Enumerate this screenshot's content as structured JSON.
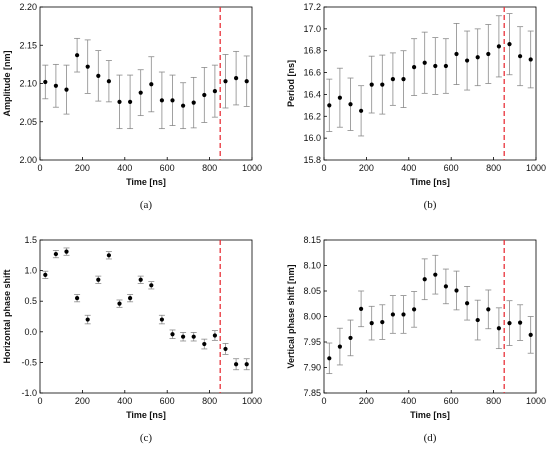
{
  "chart_data": [
    {
      "type": "scatter",
      "panel": "a",
      "caption": "(a)",
      "xlabel": "Time [ns]",
      "ylabel": "Amplitude [nm]",
      "xlim": [
        0,
        1000
      ],
      "ylim": [
        2.0,
        2.2
      ],
      "xticks": [
        "0",
        "200",
        "400",
        "600",
        "800",
        "1000"
      ],
      "yticks": [
        "2.00",
        "2.05",
        "2.10",
        "2.15",
        "2.20"
      ],
      "grid": false,
      "marker_line_x": 850,
      "series": [
        {
          "x": [
            25,
            75,
            125,
            175,
            225,
            275,
            325,
            375,
            425,
            475,
            525,
            575,
            625,
            675,
            725,
            775,
            825,
            875,
            925,
            975
          ],
          "y": [
            2.102,
            2.097,
            2.092,
            2.137,
            2.122,
            2.11,
            2.103,
            2.076,
            2.076,
            2.088,
            2.099,
            2.078,
            2.078,
            2.071,
            2.075,
            2.085,
            2.09,
            2.103,
            2.107,
            2.103
          ],
          "err": [
            0.022,
            0.028,
            0.032,
            0.022,
            0.035,
            0.033,
            0.027,
            0.035,
            0.035,
            0.03,
            0.036,
            0.037,
            0.033,
            0.03,
            0.033,
            0.036,
            0.034,
            0.035,
            0.035,
            0.033
          ]
        }
      ]
    },
    {
      "type": "scatter",
      "panel": "b",
      "caption": "(b)",
      "xlabel": "Time [ns]",
      "ylabel": "Period [ns]",
      "xlim": [
        0,
        1000
      ],
      "ylim": [
        15.8,
        17.2
      ],
      "xticks": [
        "0",
        "200",
        "400",
        "600",
        "800",
        "1000"
      ],
      "yticks": [
        "15.8",
        "16.0",
        "16.2",
        "16.4",
        "16.6",
        "16.8",
        "17.0",
        "17.2"
      ],
      "grid": false,
      "marker_line_x": 850,
      "series": [
        {
          "x": [
            25,
            75,
            125,
            175,
            225,
            275,
            325,
            375,
            425,
            475,
            525,
            575,
            625,
            675,
            725,
            775,
            825,
            875,
            925,
            975
          ],
          "y": [
            16.3,
            16.37,
            16.31,
            16.25,
            16.49,
            16.49,
            16.54,
            16.54,
            16.65,
            16.69,
            16.66,
            16.66,
            16.77,
            16.71,
            16.74,
            16.77,
            16.84,
            16.86,
            16.75,
            16.72
          ],
          "err": [
            0.24,
            0.27,
            0.24,
            0.23,
            0.26,
            0.27,
            0.24,
            0.26,
            0.26,
            0.28,
            0.26,
            0.25,
            0.28,
            0.27,
            0.26,
            0.27,
            0.28,
            0.28,
            0.27,
            0.26
          ]
        }
      ]
    },
    {
      "type": "scatter",
      "panel": "c",
      "caption": "(c)",
      "xlabel": "Time [ns]",
      "ylabel": "Horizontal phase shift",
      "xlim": [
        0,
        1000
      ],
      "ylim": [
        -1.0,
        1.5
      ],
      "xticks": [
        "0",
        "200",
        "400",
        "600",
        "800",
        "1000"
      ],
      "yticks": [
        "-1.0",
        "-0.5",
        "0.0",
        "0.5",
        "1.0",
        "1.5"
      ],
      "grid": false,
      "marker_line_x": 850,
      "series": [
        {
          "x": [
            25,
            75,
            125,
            175,
            225,
            275,
            325,
            375,
            425,
            475,
            525,
            575,
            625,
            675,
            725,
            775,
            825,
            875,
            925,
            975
          ],
          "y": [
            0.93,
            1.27,
            1.31,
            0.55,
            0.2,
            0.85,
            1.25,
            0.46,
            0.55,
            0.85,
            0.76,
            0.2,
            -0.04,
            -0.08,
            -0.08,
            -0.2,
            -0.06,
            -0.28,
            -0.53,
            -0.53
          ],
          "err": [
            0.06,
            0.06,
            0.06,
            0.06,
            0.07,
            0.06,
            0.06,
            0.06,
            0.06,
            0.06,
            0.06,
            0.07,
            0.07,
            0.07,
            0.07,
            0.08,
            0.08,
            0.09,
            0.09,
            0.09
          ]
        }
      ]
    },
    {
      "type": "scatter",
      "panel": "d",
      "caption": "(d)",
      "xlabel": "Time [ns]",
      "ylabel": "Vertical phase shift [nm]",
      "xlim": [
        0,
        1000
      ],
      "ylim": [
        7.85,
        8.15
      ],
      "xticks": [
        "0",
        "200",
        "400",
        "600",
        "800",
        "1000"
      ],
      "yticks": [
        "7.85",
        "7.90",
        "7.95",
        "8.00",
        "8.05",
        "8.10",
        "8.15"
      ],
      "grid": false,
      "marker_line_x": 850,
      "series": [
        {
          "x": [
            25,
            75,
            125,
            175,
            225,
            275,
            325,
            375,
            425,
            475,
            525,
            575,
            625,
            675,
            725,
            775,
            825,
            875,
            925,
            975
          ],
          "y": [
            7.918,
            7.941,
            7.958,
            8.015,
            7.987,
            7.989,
            8.004,
            8.004,
            8.014,
            8.073,
            8.082,
            8.059,
            8.051,
            8.026,
            7.993,
            8.014,
            7.977,
            7.987,
            7.988,
            7.964
          ],
          "err": [
            0.03,
            0.036,
            0.035,
            0.035,
            0.033,
            0.034,
            0.037,
            0.037,
            0.035,
            0.04,
            0.038,
            0.034,
            0.038,
            0.033,
            0.039,
            0.038,
            0.04,
            0.044,
            0.035,
            0.036
          ]
        }
      ]
    }
  ]
}
